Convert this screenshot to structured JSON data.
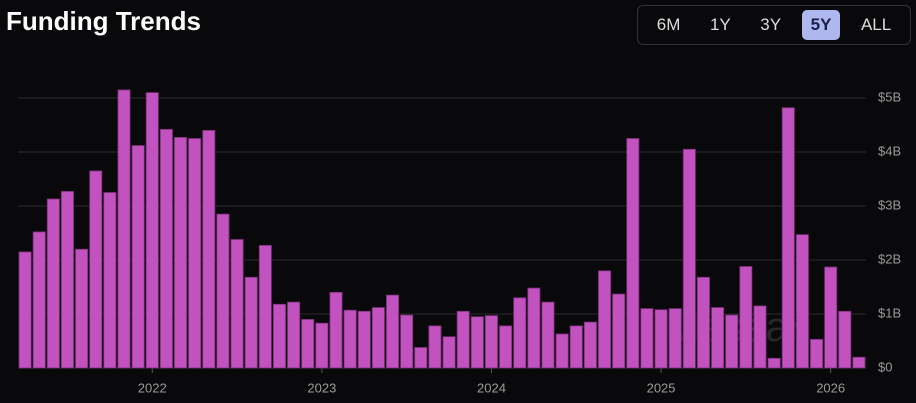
{
  "header": {
    "title": "Funding Trends",
    "range_options": [
      "6M",
      "1Y",
      "3Y",
      "5Y",
      "ALL"
    ],
    "active_range": "5Y"
  },
  "chart_data": {
    "type": "bar",
    "watermark": "Messari",
    "categories": [
      null,
      null,
      null,
      null,
      null,
      null,
      null,
      null,
      null,
      "2022",
      null,
      null,
      null,
      null,
      null,
      null,
      null,
      null,
      null,
      null,
      null,
      "2023",
      null,
      null,
      null,
      null,
      null,
      null,
      null,
      null,
      null,
      null,
      null,
      "2024",
      null,
      null,
      null,
      null,
      null,
      null,
      null,
      null,
      null,
      null,
      null,
      "2025",
      null,
      null,
      null,
      null,
      null,
      null,
      null,
      null,
      null,
      null,
      null,
      "2026",
      null,
      null
    ],
    "values": [
      2.15,
      2.52,
      3.13,
      3.27,
      2.2,
      3.65,
      3.25,
      5.15,
      4.12,
      5.1,
      4.42,
      4.27,
      4.25,
      4.4,
      2.85,
      2.38,
      1.68,
      2.27,
      1.18,
      1.22,
      0.9,
      0.83,
      1.4,
      1.07,
      1.05,
      1.12,
      1.35,
      0.98,
      0.38,
      0.78,
      0.58,
      1.05,
      0.95,
      0.97,
      0.78,
      1.3,
      1.48,
      1.22,
      0.63,
      0.78,
      0.85,
      1.8,
      1.37,
      4.25,
      1.1,
      1.08,
      1.1,
      4.05,
      1.68,
      1.12,
      0.98,
      1.88,
      1.15,
      0.18,
      4.82,
      2.47,
      0.53,
      1.87,
      1.05,
      0.2
    ],
    "color": "#c252c0",
    "ylim": [
      0,
      5.2
    ],
    "yticks": [
      {
        "value": 0,
        "label": "$0"
      },
      {
        "value": 1,
        "label": "$1B"
      },
      {
        "value": 2,
        "label": "$2B"
      },
      {
        "value": 3,
        "label": "$3B"
      },
      {
        "value": 4,
        "label": "$4B"
      },
      {
        "value": 5,
        "label": "$5B"
      }
    ],
    "grid": true
  }
}
